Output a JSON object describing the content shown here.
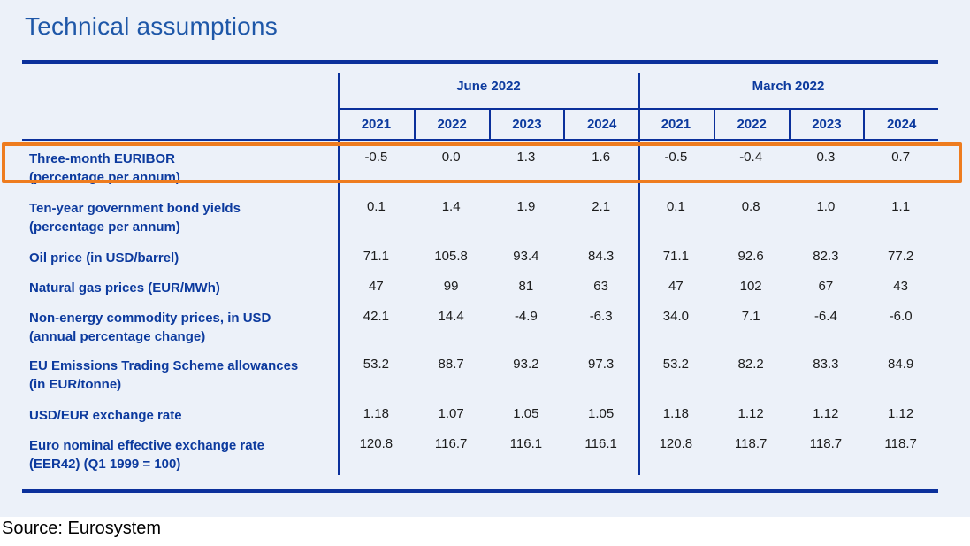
{
  "page": {
    "title": "Technical assumptions",
    "source": "Source: Eurosystem"
  },
  "colors": {
    "panel_background": "#ecf1f9",
    "table_line_blue": "#0b309b",
    "text_blue": "#0c3a9e",
    "title_blue": "#1e57a8",
    "highlight_orange": "#ee7c1f"
  },
  "highlight": {
    "target_row": "Three-month EURIBOR"
  },
  "table": {
    "groups": [
      {
        "label": "June 2022",
        "years": [
          "2021",
          "2022",
          "2023",
          "2024"
        ]
      },
      {
        "label": "March 2022",
        "years": [
          "2021",
          "2022",
          "2023",
          "2024"
        ]
      }
    ],
    "rows": [
      {
        "label": "Three-month EURIBOR",
        "sublabel": "(percentage per annum)",
        "june": [
          "-0.5",
          "0.0",
          "1.3",
          "1.6"
        ],
        "march": [
          "-0.5",
          "-0.4",
          "0.3",
          "0.7"
        ],
        "highlighted": true
      },
      {
        "label": "Ten-year government bond yields",
        "sublabel": "(percentage per annum)",
        "june": [
          "0.1",
          "1.4",
          "1.9",
          "2.1"
        ],
        "march": [
          "0.1",
          "0.8",
          "1.0",
          "1.1"
        ],
        "highlighted": false
      },
      {
        "label": "Oil price (in USD/barrel)",
        "sublabel": "",
        "june": [
          "71.1",
          "105.8",
          "93.4",
          "84.3"
        ],
        "march": [
          "71.1",
          "92.6",
          "82.3",
          "77.2"
        ],
        "highlighted": false
      },
      {
        "label": "Natural gas prices (EUR/MWh)",
        "sublabel": "",
        "june": [
          "47",
          "99",
          "81",
          "63"
        ],
        "march": [
          "47",
          "102",
          "67",
          "43"
        ],
        "highlighted": false
      },
      {
        "label": "Non-energy commodity prices, in USD",
        "sublabel": "(annual percentage change)",
        "june": [
          "42.1",
          "14.4",
          "-4.9",
          "-6.3"
        ],
        "march": [
          "34.0",
          "7.1",
          "-6.4",
          "-6.0"
        ],
        "highlighted": false
      },
      {
        "label": "EU Emissions Trading Scheme allowances",
        "sublabel": "(in EUR/tonne)",
        "june": [
          "53.2",
          "88.7",
          "93.2",
          "97.3"
        ],
        "march": [
          "53.2",
          "82.2",
          "83.3",
          "84.9"
        ],
        "highlighted": false
      },
      {
        "label": "USD/EUR exchange rate",
        "sublabel": "",
        "june": [
          "1.18",
          "1.07",
          "1.05",
          "1.05"
        ],
        "march": [
          "1.18",
          "1.12",
          "1.12",
          "1.12"
        ],
        "highlighted": false
      },
      {
        "label": "Euro nominal effective exchange rate",
        "sublabel": "(EER42) (Q1 1999 = 100)",
        "june": [
          "120.8",
          "116.7",
          "116.1",
          "116.1"
        ],
        "march": [
          "120.8",
          "118.7",
          "118.7",
          "118.7"
        ],
        "highlighted": false
      }
    ]
  }
}
